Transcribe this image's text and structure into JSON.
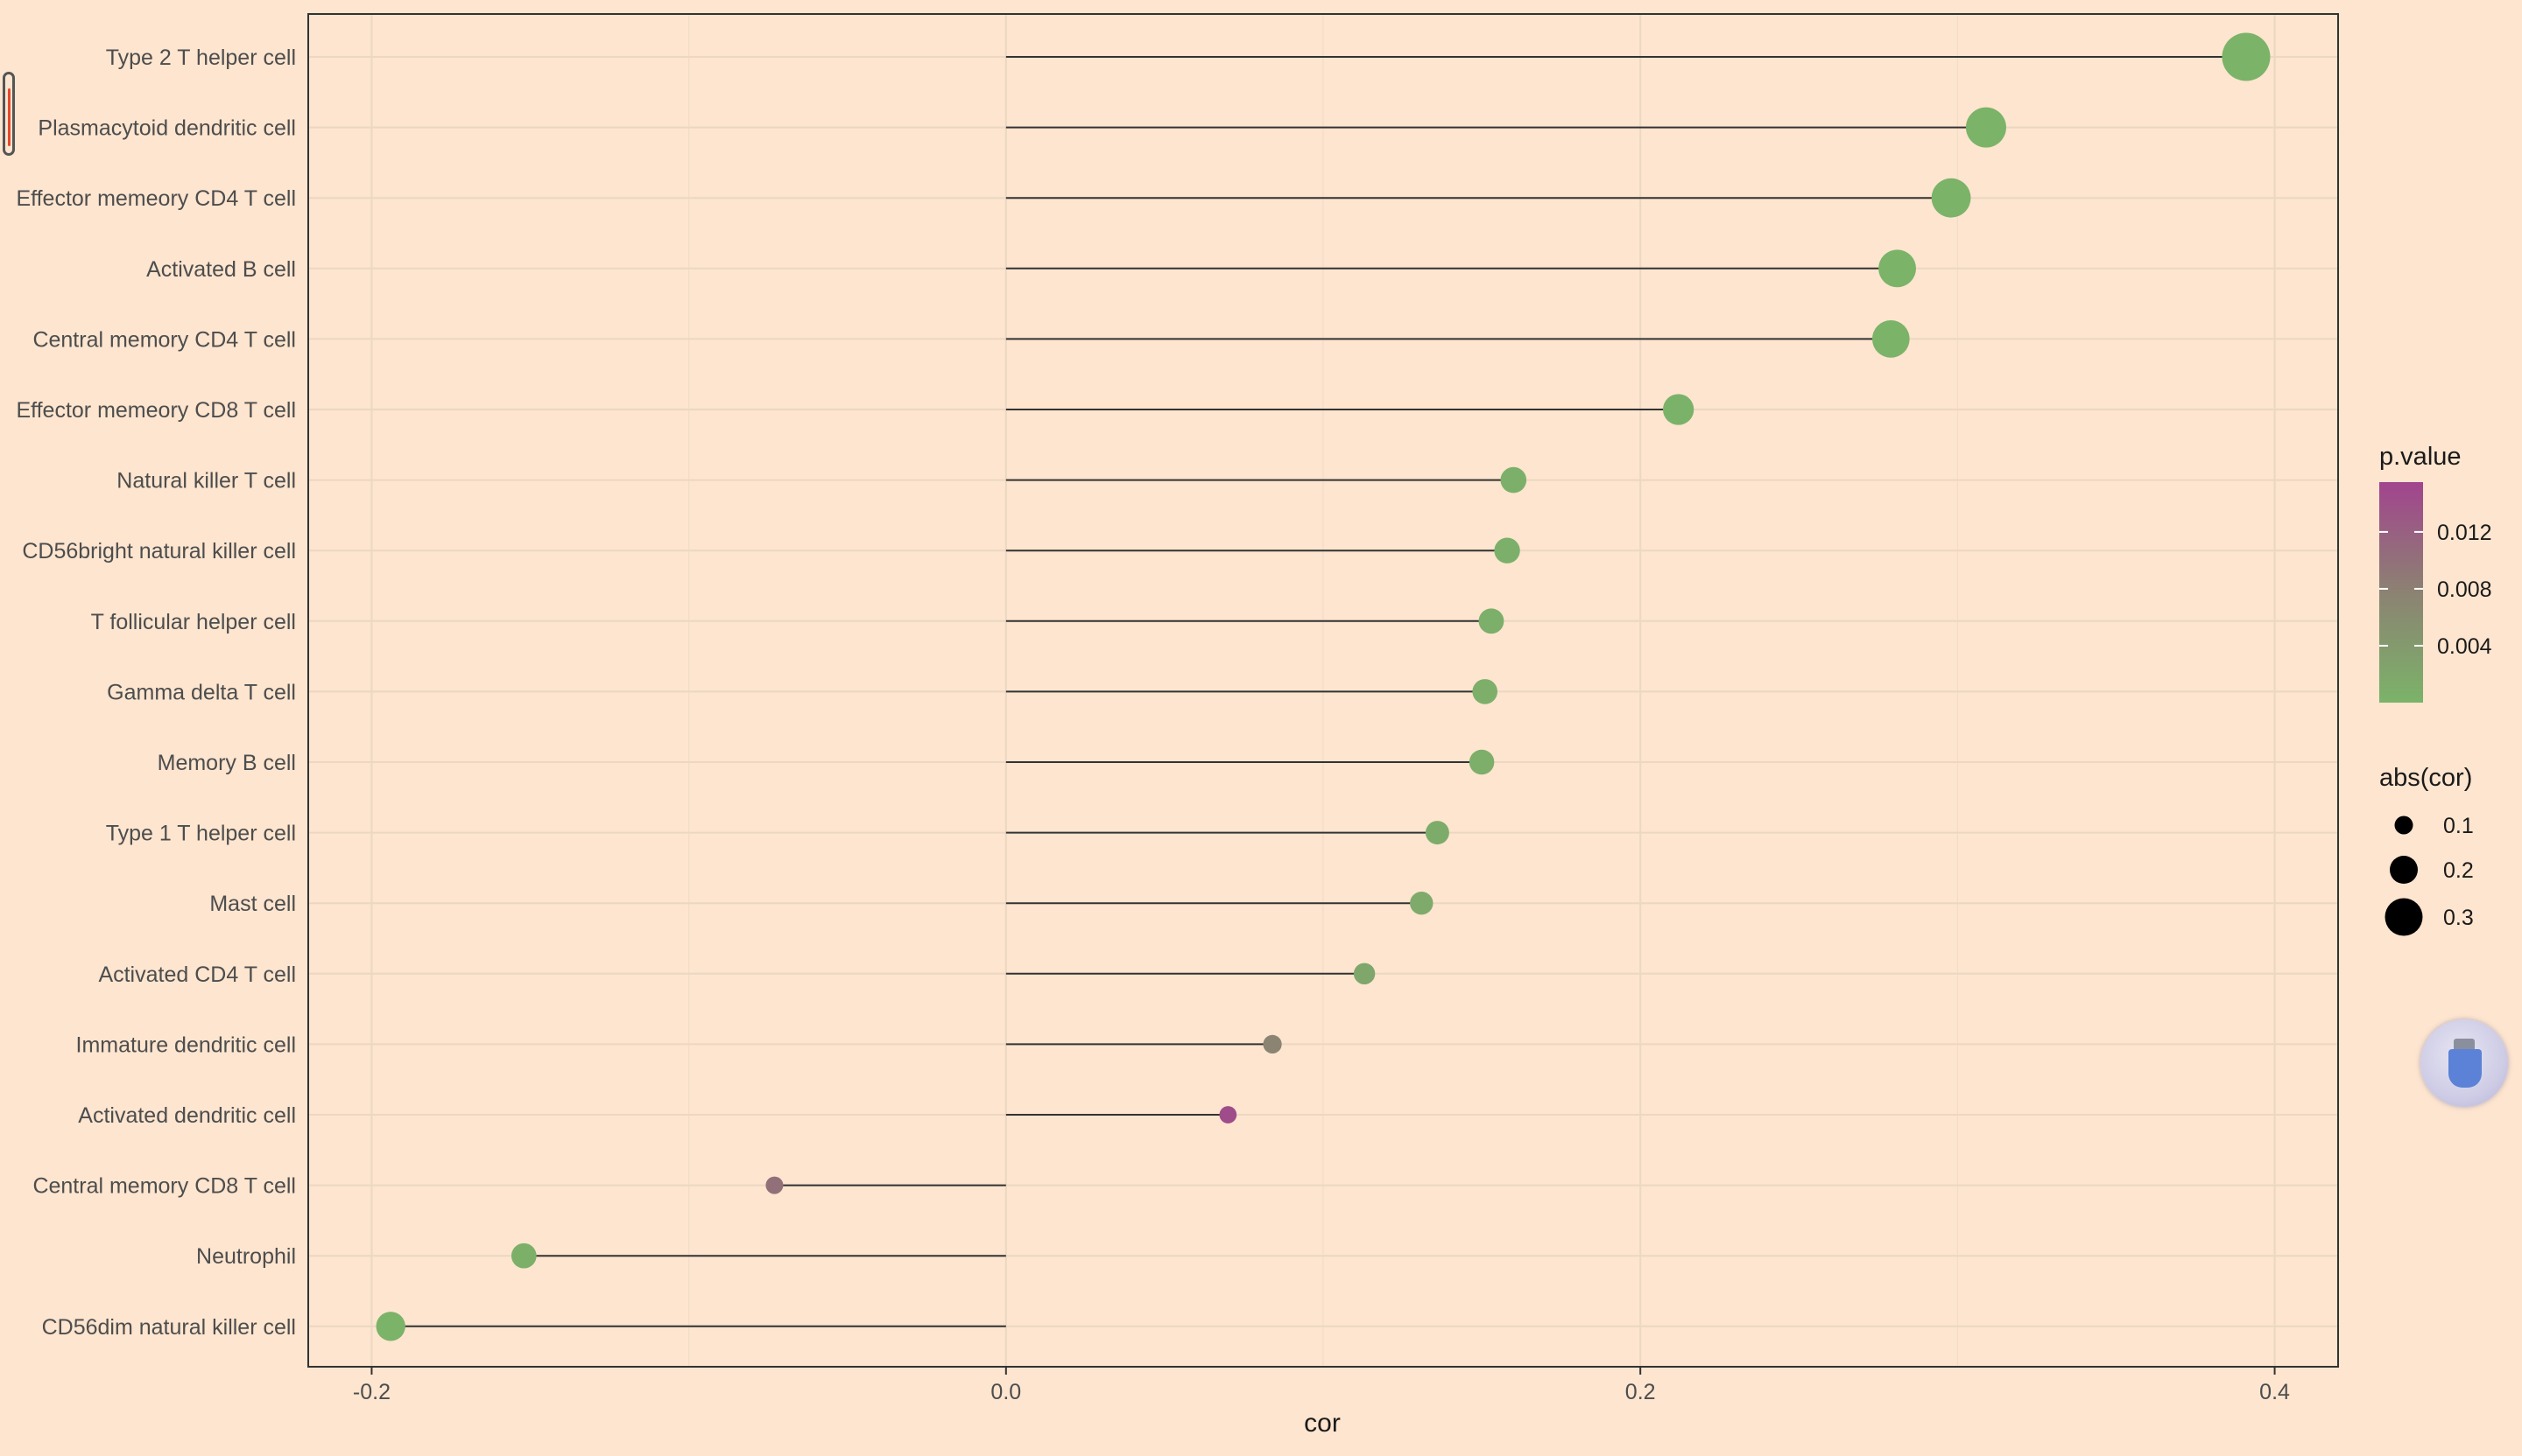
{
  "chart_data": {
    "type": "lollipop",
    "xlabel": "cor",
    "ylabel": "",
    "xlim": [
      -0.22,
      0.42
    ],
    "xticks": [
      -0.2,
      0.0,
      0.2,
      0.4
    ],
    "xtick_labels": [
      "-0.2",
      "0.0",
      "0.2",
      "0.4"
    ],
    "grid": true,
    "legend_position": "right",
    "categories": [
      "Type 2 T helper cell",
      "Plasmacytoid dendritic cell",
      "Effector memeory CD4 T cell",
      "Activated B cell",
      "Central memory CD4 T cell",
      "Effector memeory CD8 T cell",
      "Natural killer T cell",
      "CD56bright natural killer cell",
      "T follicular helper cell",
      "Gamma delta T cell",
      "Memory B cell",
      "Type 1 T helper cell",
      "Mast cell",
      "Activated CD4 T cell",
      "Immature dendritic cell",
      "Activated dendritic cell",
      "Central memory CD8 T cell",
      "Neutrophil",
      "CD56dim natural killer cell"
    ],
    "values": [
      0.391,
      0.309,
      0.298,
      0.281,
      0.279,
      0.212,
      0.16,
      0.158,
      0.153,
      0.151,
      0.15,
      0.136,
      0.131,
      0.113,
      0.084,
      0.07,
      -0.073,
      -0.152,
      -0.194
    ],
    "p_values": [
      0.0,
      0.0,
      0.0,
      0.0,
      0.0,
      0.0001,
      0.0005,
      0.0005,
      0.0006,
      0.0007,
      0.0008,
      0.0011,
      0.0013,
      0.002,
      0.0075,
      0.0145,
      0.01,
      0.0004,
      0.0
    ],
    "color_scale": {
      "title": "p.value",
      "low_color": "#7bb369",
      "mid_color": "#8c8272",
      "high_color": "#a2448e",
      "range": [
        0.0,
        0.0155
      ],
      "ticks": [
        0.004,
        0.008,
        0.012
      ],
      "tick_labels": [
        "0.004",
        "0.008",
        "0.012"
      ]
    },
    "size_scale": {
      "title": "abs(cor)",
      "ticks": [
        0.1,
        0.2,
        0.3
      ],
      "tick_labels": [
        "0.1",
        "0.2",
        "0.3"
      ]
    }
  }
}
